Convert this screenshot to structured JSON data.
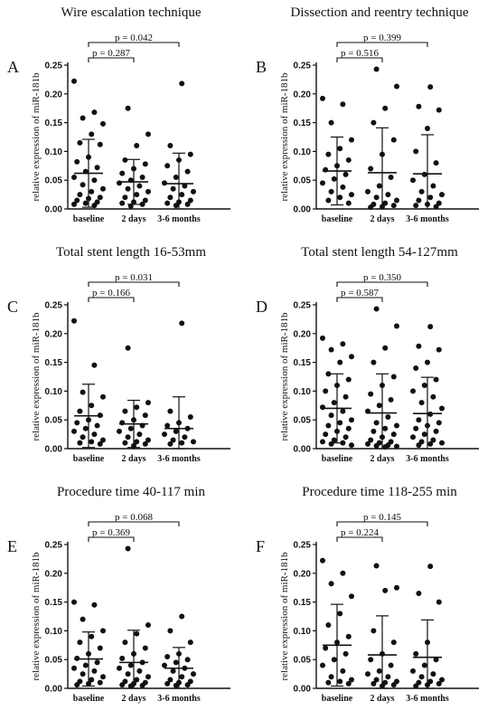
{
  "chart_data": [
    {
      "type": "scatter",
      "panel_label": "A",
      "title": "Wire escalation technique",
      "ylabel": "relative expression of miR-181b",
      "ylim": [
        0,
        0.25
      ],
      "yticks": [
        "0.00",
        "0.05",
        "0.10",
        "0.15",
        "0.20",
        "0.25"
      ],
      "categories": [
        "baseline",
        "2 days",
        "3-6 months"
      ],
      "pvalues": [
        {
          "from": 0,
          "to": 1,
          "label": "p = 0.287"
        },
        {
          "from": 0,
          "to": 2,
          "label": "p = 0.042"
        }
      ],
      "summary": [
        {
          "mean": 0.062,
          "upper": 0.121,
          "lower": 0.003
        },
        {
          "mean": 0.047,
          "upper": 0.086,
          "lower": 0.008
        },
        {
          "mean": 0.044,
          "upper": 0.097,
          "lower": 0.0
        }
      ],
      "series": [
        {
          "category": "baseline",
          "values": [
            0.222,
            0.168,
            0.158,
            0.148,
            0.13,
            0.115,
            0.112,
            0.09,
            0.082,
            0.072,
            0.065,
            0.055,
            0.05,
            0.042,
            0.035,
            0.03,
            0.025,
            0.02,
            0.018,
            0.015,
            0.012,
            0.01,
            0.008,
            0.006
          ]
        },
        {
          "category": "2 days",
          "values": [
            0.175,
            0.13,
            0.11,
            0.085,
            0.078,
            0.07,
            0.062,
            0.055,
            0.05,
            0.045,
            0.04,
            0.035,
            0.03,
            0.025,
            0.02,
            0.015,
            0.012,
            0.01,
            0.008,
            0.005
          ]
        },
        {
          "category": "3-6 months",
          "values": [
            0.218,
            0.11,
            0.095,
            0.085,
            0.075,
            0.065,
            0.055,
            0.045,
            0.04,
            0.035,
            0.03,
            0.025,
            0.02,
            0.015,
            0.012,
            0.01,
            0.008,
            0.006
          ]
        }
      ]
    },
    {
      "type": "scatter",
      "panel_label": "B",
      "title": "Dissection and reentry technique",
      "ylabel": "relative expression of miR-181b",
      "ylim": [
        0,
        0.25
      ],
      "yticks": [
        "0.00",
        "0.05",
        "0.10",
        "0.15",
        "0.20",
        "0.25"
      ],
      "categories": [
        "baseline",
        "2 days",
        "3-6 months"
      ],
      "pvalues": [
        {
          "from": 0,
          "to": 1,
          "label": "p = 0.516"
        },
        {
          "from": 0,
          "to": 2,
          "label": "p = 0.399"
        }
      ],
      "summary": [
        {
          "mean": 0.066,
          "upper": 0.125,
          "lower": 0.007
        },
        {
          "mean": 0.063,
          "upper": 0.141,
          "lower": 0.0
        },
        {
          "mean": 0.061,
          "upper": 0.129,
          "lower": 0.0
        }
      ],
      "series": [
        {
          "category": "baseline",
          "values": [
            0.192,
            0.182,
            0.15,
            0.12,
            0.105,
            0.095,
            0.085,
            0.075,
            0.068,
            0.06,
            0.052,
            0.045,
            0.038,
            0.03,
            0.025,
            0.02,
            0.015,
            0.01
          ]
        },
        {
          "category": "2 days",
          "values": [
            0.243,
            0.213,
            0.175,
            0.15,
            0.12,
            0.095,
            0.07,
            0.055,
            0.04,
            0.03,
            0.025,
            0.02,
            0.015,
            0.01,
            0.008,
            0.006,
            0.004,
            0.003
          ]
        },
        {
          "category": "3-6 months",
          "values": [
            0.212,
            0.178,
            0.172,
            0.14,
            0.1,
            0.08,
            0.06,
            0.05,
            0.04,
            0.03,
            0.025,
            0.02,
            0.015,
            0.01,
            0.008,
            0.006,
            0.004
          ]
        }
      ]
    },
    {
      "type": "scatter",
      "panel_label": "C",
      "title": "Total stent length  16-53mm",
      "ylabel": "relative expression of miR-181b",
      "ylim": [
        0,
        0.25
      ],
      "yticks": [
        "0.00",
        "0.05",
        "0.10",
        "0.15",
        "0.20",
        "0.25"
      ],
      "categories": [
        "baseline",
        "2 days",
        "3-6 months"
      ],
      "pvalues": [
        {
          "from": 0,
          "to": 1,
          "label": "p = 0.166"
        },
        {
          "from": 0,
          "to": 2,
          "label": "p = 0.031"
        }
      ],
      "summary": [
        {
          "mean": 0.057,
          "upper": 0.112,
          "lower": 0.002
        },
        {
          "mean": 0.043,
          "upper": 0.084,
          "lower": 0.002
        },
        {
          "mean": 0.035,
          "upper": 0.09,
          "lower": 0.0
        }
      ],
      "series": [
        {
          "category": "baseline",
          "values": [
            0.222,
            0.145,
            0.098,
            0.09,
            0.075,
            0.065,
            0.058,
            0.05,
            0.045,
            0.04,
            0.035,
            0.03,
            0.025,
            0.02,
            0.015,
            0.012,
            0.01,
            0.008
          ]
        },
        {
          "category": "2 days",
          "values": [
            0.175,
            0.08,
            0.072,
            0.065,
            0.058,
            0.05,
            0.045,
            0.04,
            0.035,
            0.03,
            0.025,
            0.02,
            0.015,
            0.012,
            0.01,
            0.008,
            0.005
          ]
        },
        {
          "category": "3-6 months",
          "values": [
            0.218,
            0.065,
            0.055,
            0.045,
            0.04,
            0.035,
            0.03,
            0.025,
            0.02,
            0.015,
            0.012,
            0.01,
            0.008
          ]
        }
      ]
    },
    {
      "type": "scatter",
      "panel_label": "D",
      "title": "Total stent length  54-127mm",
      "ylabel": "relative expression of miR-181b",
      "ylim": [
        0,
        0.25
      ],
      "yticks": [
        "0.00",
        "0.05",
        "0.10",
        "0.15",
        "0.20",
        "0.25"
      ],
      "categories": [
        "baseline",
        "2 days",
        "3-6 months"
      ],
      "pvalues": [
        {
          "from": 0,
          "to": 1,
          "label": "p = 0.587"
        },
        {
          "from": 0,
          "to": 2,
          "label": "p = 0.350"
        }
      ],
      "summary": [
        {
          "mean": 0.07,
          "upper": 0.13,
          "lower": 0.01
        },
        {
          "mean": 0.062,
          "upper": 0.13,
          "lower": 0.0
        },
        {
          "mean": 0.061,
          "upper": 0.124,
          "lower": 0.0
        }
      ],
      "series": [
        {
          "category": "baseline",
          "values": [
            0.192,
            0.182,
            0.172,
            0.16,
            0.15,
            0.13,
            0.12,
            0.11,
            0.1,
            0.09,
            0.08,
            0.072,
            0.065,
            0.058,
            0.05,
            0.045,
            0.04,
            0.035,
            0.03,
            0.025,
            0.02,
            0.015,
            0.012,
            0.01,
            0.008,
            0.006
          ]
        },
        {
          "category": "2 days",
          "values": [
            0.243,
            0.213,
            0.175,
            0.15,
            0.125,
            0.11,
            0.095,
            0.085,
            0.075,
            0.065,
            0.055,
            0.045,
            0.04,
            0.035,
            0.03,
            0.025,
            0.02,
            0.015,
            0.012,
            0.01,
            0.008,
            0.006,
            0.005,
            0.004,
            0.003
          ]
        },
        {
          "category": "3-6 months",
          "values": [
            0.212,
            0.178,
            0.172,
            0.15,
            0.14,
            0.12,
            0.11,
            0.1,
            0.09,
            0.08,
            0.07,
            0.06,
            0.05,
            0.045,
            0.04,
            0.035,
            0.03,
            0.025,
            0.02,
            0.015,
            0.012,
            0.01,
            0.008,
            0.006
          ]
        }
      ]
    },
    {
      "type": "scatter",
      "panel_label": "E",
      "title": "Procedure time  40-117 min",
      "ylabel": "relative expression of miR-181b",
      "ylim": [
        0,
        0.25
      ],
      "yticks": [
        "0.00",
        "0.05",
        "0.10",
        "0.15",
        "0.20",
        "0.25"
      ],
      "categories": [
        "baseline",
        "2 days",
        "3-6 months"
      ],
      "pvalues": [
        {
          "from": 0,
          "to": 1,
          "label": "p = 0.369"
        },
        {
          "from": 0,
          "to": 2,
          "label": "p = 0.068"
        }
      ],
      "summary": [
        {
          "mean": 0.051,
          "upper": 0.098,
          "lower": 0.004
        },
        {
          "mean": 0.045,
          "upper": 0.101,
          "lower": 0.0
        },
        {
          "mean": 0.035,
          "upper": 0.071,
          "lower": 0.0
        }
      ],
      "series": [
        {
          "category": "baseline",
          "values": [
            0.15,
            0.145,
            0.12,
            0.1,
            0.09,
            0.08,
            0.07,
            0.06,
            0.052,
            0.045,
            0.04,
            0.035,
            0.03,
            0.025,
            0.02,
            0.015,
            0.012,
            0.01,
            0.008,
            0.006
          ]
        },
        {
          "category": "2 days",
          "values": [
            0.243,
            0.11,
            0.095,
            0.08,
            0.07,
            0.06,
            0.052,
            0.045,
            0.04,
            0.035,
            0.03,
            0.025,
            0.02,
            0.015,
            0.012,
            0.01,
            0.008,
            0.006,
            0.005,
            0.004
          ]
        },
        {
          "category": "3-6 months",
          "values": [
            0.125,
            0.1,
            0.08,
            0.06,
            0.055,
            0.05,
            0.045,
            0.04,
            0.035,
            0.03,
            0.025,
            0.02,
            0.015,
            0.012,
            0.01,
            0.008,
            0.006,
            0.005
          ]
        }
      ]
    },
    {
      "type": "scatter",
      "panel_label": "F",
      "title": "Procedure time  118-255 min",
      "ylabel": "relative expression of miR-181b",
      "ylim": [
        0,
        0.25
      ],
      "yticks": [
        "0.00",
        "0.05",
        "0.10",
        "0.15",
        "0.20",
        "0.25"
      ],
      "categories": [
        "baseline",
        "2 days",
        "3-6 months"
      ],
      "pvalues": [
        {
          "from": 0,
          "to": 1,
          "label": "p = 0.224"
        },
        {
          "from": 0,
          "to": 2,
          "label": "p = 0.145"
        }
      ],
      "summary": [
        {
          "mean": 0.075,
          "upper": 0.146,
          "lower": 0.004
        },
        {
          "mean": 0.058,
          "upper": 0.126,
          "lower": 0.0
        },
        {
          "mean": 0.054,
          "upper": 0.119,
          "lower": 0.0
        }
      ],
      "series": [
        {
          "category": "baseline",
          "values": [
            0.222,
            0.2,
            0.182,
            0.16,
            0.13,
            0.11,
            0.09,
            0.08,
            0.07,
            0.06,
            0.05,
            0.04,
            0.03,
            0.02,
            0.015,
            0.012,
            0.01,
            0.008
          ]
        },
        {
          "category": "2 days",
          "values": [
            0.213,
            0.175,
            0.17,
            0.1,
            0.08,
            0.06,
            0.05,
            0.04,
            0.03,
            0.025,
            0.02,
            0.015,
            0.012,
            0.01,
            0.008,
            0.006,
            0.004
          ]
        },
        {
          "category": "3-6 months",
          "values": [
            0.212,
            0.165,
            0.15,
            0.08,
            0.06,
            0.05,
            0.04,
            0.03,
            0.025,
            0.02,
            0.015,
            0.012,
            0.01,
            0.008,
            0.006,
            0.004
          ]
        }
      ]
    }
  ]
}
